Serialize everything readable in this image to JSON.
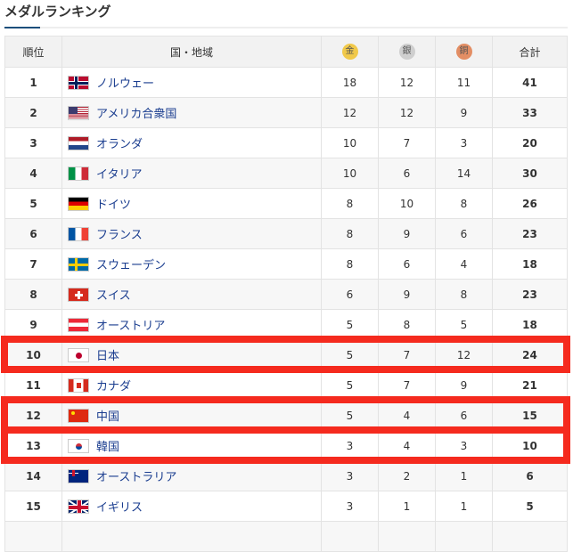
{
  "title": "メダルランキング",
  "headers": {
    "rank": "順位",
    "country": "国・地域",
    "gold": "金",
    "silver": "銀",
    "bronze": "銅",
    "total": "合計"
  },
  "colors": {
    "gold": "#f1c94a",
    "silver": "#cfcfcf",
    "bronze": "#e38e64",
    "highlight": "#f52a1e",
    "link": "#1a3d8f"
  },
  "rows": [
    {
      "rank": "1",
      "country": "ノルウェー",
      "flag": "norway-flag",
      "gold": "18",
      "silver": "12",
      "bronze": "11",
      "total": "41"
    },
    {
      "rank": "2",
      "country": "アメリカ合衆国",
      "flag": "usa-flag",
      "gold": "12",
      "silver": "12",
      "bronze": "9",
      "total": "33"
    },
    {
      "rank": "3",
      "country": "オランダ",
      "flag": "netherlands-flag",
      "gold": "10",
      "silver": "7",
      "bronze": "3",
      "total": "20"
    },
    {
      "rank": "4",
      "country": "イタリア",
      "flag": "italy-flag",
      "gold": "10",
      "silver": "6",
      "bronze": "14",
      "total": "30"
    },
    {
      "rank": "5",
      "country": "ドイツ",
      "flag": "germany-flag",
      "gold": "8",
      "silver": "10",
      "bronze": "8",
      "total": "26"
    },
    {
      "rank": "6",
      "country": "フランス",
      "flag": "france-flag",
      "gold": "8",
      "silver": "9",
      "bronze": "6",
      "total": "23"
    },
    {
      "rank": "7",
      "country": "スウェーデン",
      "flag": "sweden-flag",
      "gold": "8",
      "silver": "6",
      "bronze": "4",
      "total": "18"
    },
    {
      "rank": "8",
      "country": "スイス",
      "flag": "switzerland-flag",
      "gold": "6",
      "silver": "9",
      "bronze": "8",
      "total": "23"
    },
    {
      "rank": "9",
      "country": "オーストリア",
      "flag": "austria-flag",
      "gold": "5",
      "silver": "8",
      "bronze": "5",
      "total": "18"
    },
    {
      "rank": "10",
      "country": "日本",
      "flag": "japan-flag",
      "gold": "5",
      "silver": "7",
      "bronze": "12",
      "total": "24",
      "highlighted": true
    },
    {
      "rank": "11",
      "country": "カナダ",
      "flag": "canada-flag",
      "gold": "5",
      "silver": "7",
      "bronze": "9",
      "total": "21"
    },
    {
      "rank": "12",
      "country": "中国",
      "flag": "china-flag",
      "gold": "5",
      "silver": "4",
      "bronze": "6",
      "total": "15",
      "highlighted": true
    },
    {
      "rank": "13",
      "country": "韓国",
      "flag": "korea-flag",
      "gold": "3",
      "silver": "4",
      "bronze": "3",
      "total": "10",
      "highlighted": true
    },
    {
      "rank": "14",
      "country": "オーストラリア",
      "flag": "australia-flag",
      "gold": "3",
      "silver": "2",
      "bronze": "1",
      "total": "6"
    },
    {
      "rank": "15",
      "country": "イギリス",
      "flag": "uk-flag",
      "gold": "3",
      "silver": "1",
      "bronze": "1",
      "total": "5"
    }
  ]
}
